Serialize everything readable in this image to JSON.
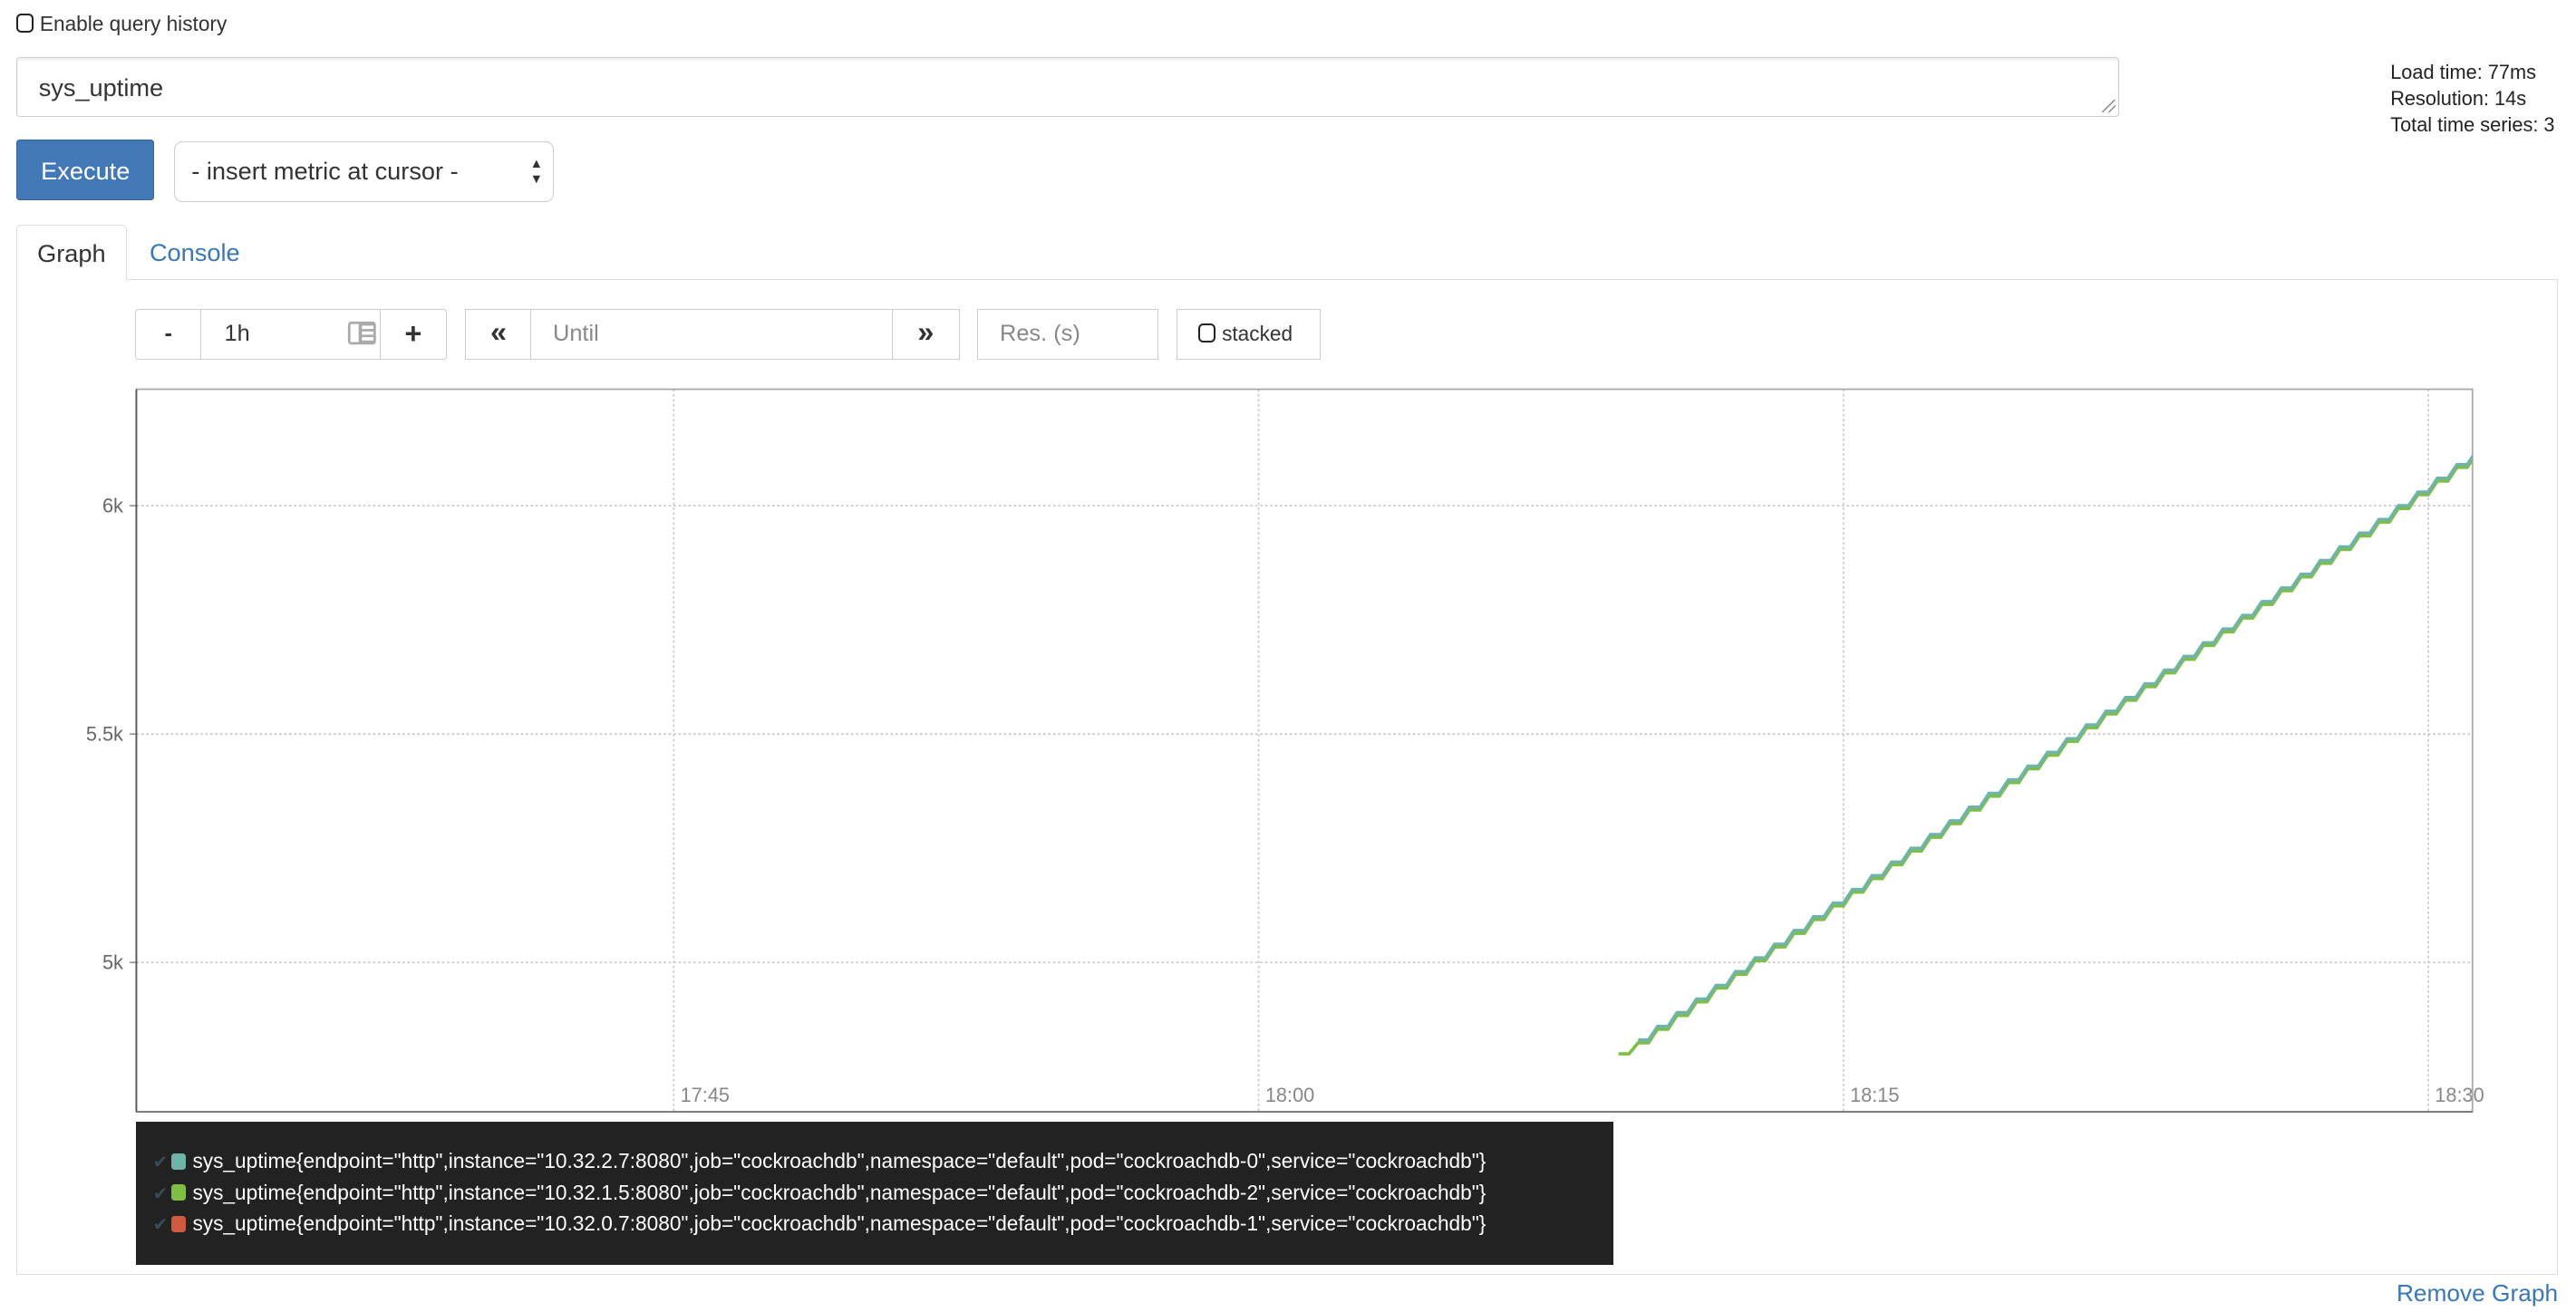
{
  "history": {
    "label": "Enable query history",
    "checked": false
  },
  "query": {
    "value": "sys_uptime"
  },
  "stats": {
    "load_time": "Load time: 77ms",
    "resolution": "Resolution: 14s",
    "total_series": "Total time series: 3"
  },
  "execute_label": "Execute",
  "metric_select": {
    "value": "- insert metric at cursor -"
  },
  "tabs": [
    {
      "label": "Graph",
      "active": true
    },
    {
      "label": "Console",
      "active": false
    }
  ],
  "controls": {
    "minus": "-",
    "range": "1h",
    "plus": "+",
    "back": "«",
    "until_placeholder": "Until",
    "forward": "»",
    "res_placeholder": "Res. (s)",
    "stacked_label": "stacked",
    "stacked_checked": false
  },
  "remove_graph": "Remove Graph",
  "legend": [
    {
      "label": "sys_uptime{endpoint=\"http\",instance=\"10.32.2.7:8080\",job=\"cockroachdb\",namespace=\"default\",pod=\"cockroachdb-0\",service=\"cockroachdb\"}",
      "color": "#6fb3a9"
    },
    {
      "label": "sys_uptime{endpoint=\"http\",instance=\"10.32.1.5:8080\",job=\"cockroachdb\",namespace=\"default\",pod=\"cockroachdb-2\",service=\"cockroachdb\"}",
      "color": "#7ebf43"
    },
    {
      "label": "sys_uptime{endpoint=\"http\",instance=\"10.32.0.7:8080\",job=\"cockroachdb\",namespace=\"default\",pod=\"cockroachdb-1\",service=\"cockroachdb\"}",
      "color": "#cf5a3f"
    }
  ],
  "chart_data": {
    "type": "line",
    "xlim": [
      "17:31:13",
      "18:31:08"
    ],
    "ylim": [
      4673,
      6255
    ],
    "grid": true,
    "y_ticks": [
      {
        "value": 5000,
        "label": "5k"
      },
      {
        "value": 5500,
        "label": "5.5k"
      },
      {
        "value": 6000,
        "label": "6k"
      }
    ],
    "x_ticks": [
      "17:45",
      "18:00",
      "18:15",
      "18:30"
    ],
    "x": [
      "18:09:14",
      "18:09:44",
      "18:10:14",
      "18:10:44",
      "18:11:14",
      "18:11:44",
      "18:12:14",
      "18:12:44",
      "18:13:14",
      "18:13:44",
      "18:14:14",
      "18:14:44",
      "18:15:14",
      "18:15:44",
      "18:16:14",
      "18:16:44",
      "18:17:14",
      "18:17:44",
      "18:18:14",
      "18:18:44",
      "18:19:14",
      "18:19:44",
      "18:20:14",
      "18:20:44",
      "18:21:14",
      "18:21:44",
      "18:22:14",
      "18:22:44",
      "18:23:14",
      "18:23:44",
      "18:24:14",
      "18:24:44",
      "18:25:14",
      "18:25:44",
      "18:26:14",
      "18:26:44",
      "18:27:14",
      "18:27:44",
      "18:28:14",
      "18:28:44",
      "18:29:14",
      "18:29:44",
      "18:30:14",
      "18:30:44",
      "18:31:14"
    ],
    "series": [
      {
        "name": "sys_uptime{endpoint=\"http\",instance=\"10.32.0.7:8080\",job=\"cockroachdb\",namespace=\"default\",pod=\"cockroachdb-1\",service=\"cockroachdb\"}",
        "color": "#cf5a3f",
        "values": [
          null,
          4828,
          4858,
          4888,
          4918,
          4948,
          4978,
          5008,
          5038,
          5068,
          5098,
          5128,
          5158,
          5188,
          5218,
          5248,
          5278,
          5308,
          5338,
          5368,
          5398,
          5428,
          5458,
          5488,
          5518,
          5548,
          5578,
          5608,
          5638,
          5668,
          5698,
          5728,
          5758,
          5788,
          5818,
          5848,
          5878,
          5908,
          5938,
          5968,
          5998,
          6028,
          6058,
          6088,
          6118
        ]
      },
      {
        "name": "sys_uptime{endpoint=\"http\",instance=\"10.32.1.5:8080\",job=\"cockroachdb\",namespace=\"default\",pod=\"cockroachdb-2\",service=\"cockroachdb\"}",
        "color": "#7ebf43",
        "values": [
          4800,
          4824,
          4854,
          4884,
          4914,
          4944,
          4974,
          5004,
          5034,
          5064,
          5094,
          5124,
          5154,
          5184,
          5214,
          5244,
          5274,
          5304,
          5334,
          5364,
          5394,
          5424,
          5454,
          5484,
          5514,
          5544,
          5574,
          5604,
          5634,
          5664,
          5694,
          5724,
          5754,
          5784,
          5814,
          5844,
          5874,
          5904,
          5934,
          5964,
          5994,
          6024,
          6054,
          6084,
          6114
        ]
      },
      {
        "name": "sys_uptime{endpoint=\"http\",instance=\"10.32.2.7:8080\",job=\"cockroachdb\",namespace=\"default\",pod=\"cockroachdb-0\",service=\"cockroachdb\"}",
        "color": "#6fb3a9",
        "values": [
          null,
          4830,
          4860,
          4890,
          4920,
          4950,
          4980,
          5010,
          5040,
          5070,
          5100,
          5130,
          5160,
          5190,
          5220,
          5250,
          5280,
          5310,
          5340,
          5370,
          5400,
          5430,
          5460,
          5490,
          5520,
          5550,
          5580,
          5610,
          5640,
          5670,
          5700,
          5730,
          5760,
          5790,
          5820,
          5850,
          5880,
          5910,
          5940,
          5970,
          6000,
          6030,
          6060,
          6090,
          6120
        ]
      }
    ]
  }
}
